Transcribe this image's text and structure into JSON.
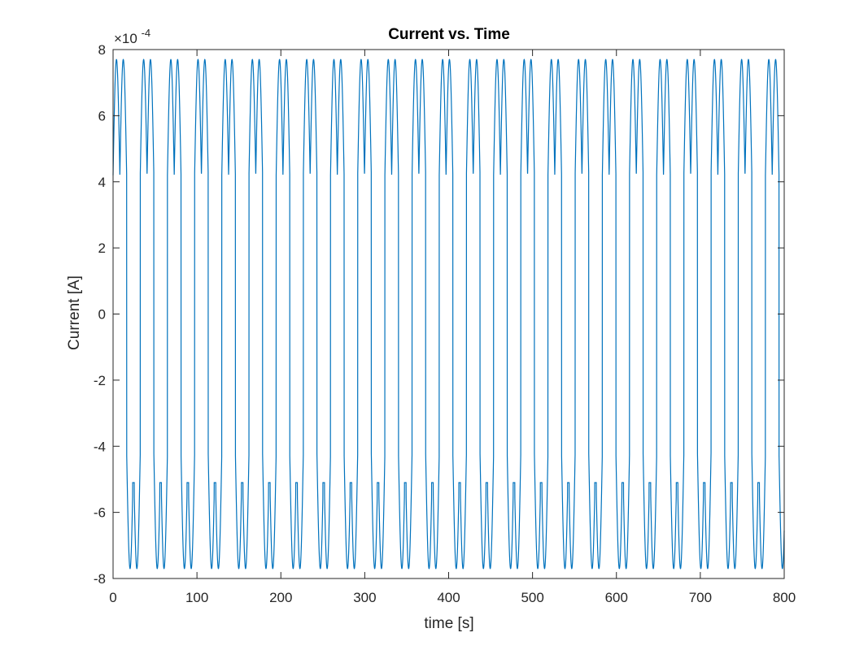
{
  "chart_data": {
    "type": "line",
    "title": "Current vs. Time",
    "xlabel": "time [s]",
    "ylabel": "Current [A]",
    "y_multiplier_label": "×10",
    "y_multiplier_exponent": "-4",
    "xlim": [
      0,
      800
    ],
    "ylim": [
      -8,
      8
    ],
    "y_scale": 0.0001,
    "x_ticks": [
      0,
      100,
      200,
      300,
      400,
      500,
      600,
      700,
      800
    ],
    "x_tick_labels": [
      "0",
      "100",
      "200",
      "300",
      "400",
      "500",
      "600",
      "700",
      "800"
    ],
    "y_ticks": [
      -8,
      -6,
      -4,
      -2,
      0,
      2,
      4,
      6,
      8
    ],
    "y_tick_labels": [
      "-8",
      "-6",
      "-4",
      "-2",
      "0",
      "2",
      "4",
      "6",
      "8"
    ],
    "grid": false,
    "series": [
      {
        "color": "#0072BD",
        "period_s": 32.4,
        "half_period_s": 16.2,
        "high_state": {
          "min": 0.00042,
          "max": 0.00077,
          "hump_peak": 0.000745,
          "dip": 0.00042
        },
        "low_state": {
          "min": -0.00077,
          "max": -0.00042,
          "hump_trough": -0.000745,
          "mid_plateau": -0.00051
        },
        "x_start": 0,
        "x_end": 800
      }
    ]
  },
  "colors": {
    "line": "#0072BD",
    "axis": "#262626",
    "background": "#ffffff"
  }
}
